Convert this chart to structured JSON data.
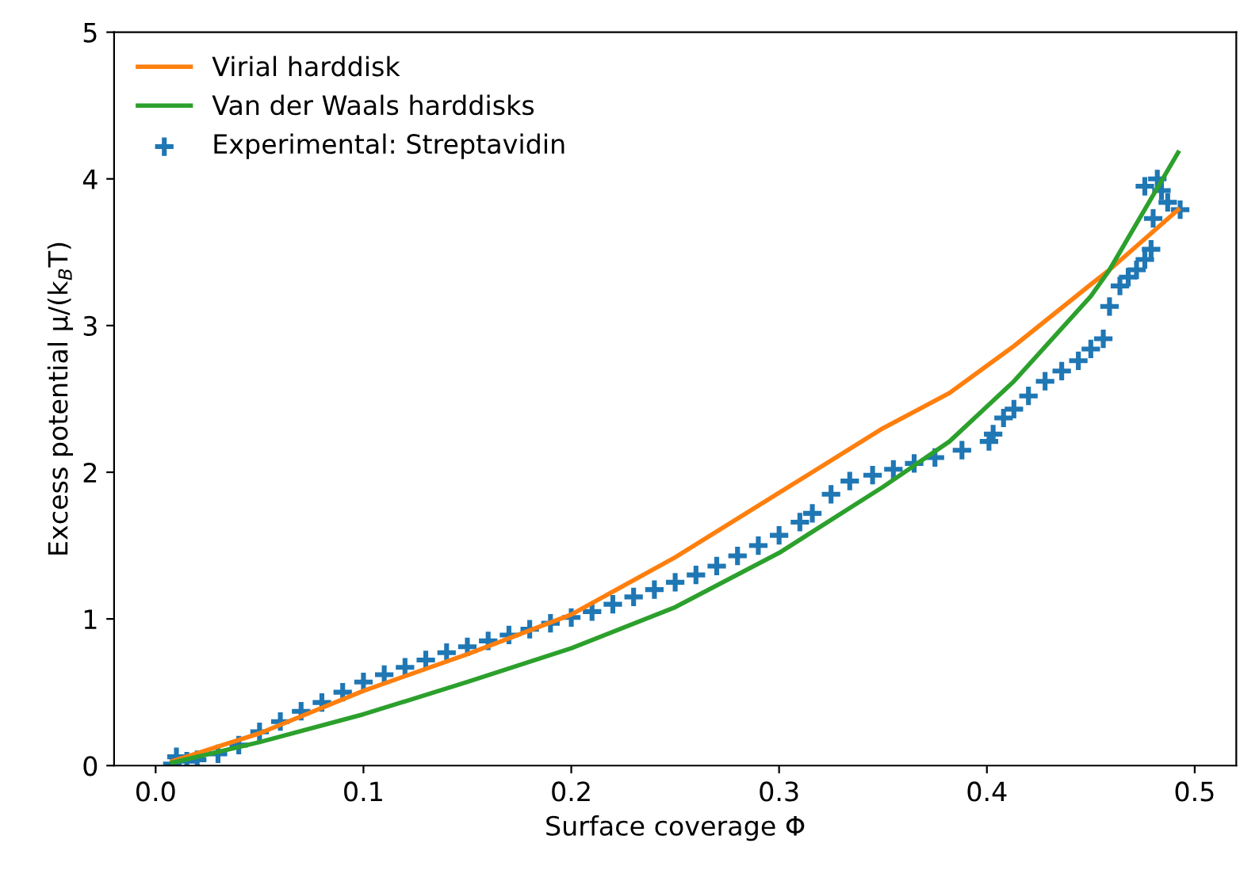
{
  "chart_data": {
    "type": "line",
    "xlabel": "Surface coverage Φ",
    "ylabel": "Excess potential μ/(k$_{B}$T)",
    "xlim": [
      -0.02,
      0.52
    ],
    "ylim": [
      0,
      5
    ],
    "xticks": [
      {
        "value": 0.0,
        "label": "0.0"
      },
      0.1,
      0.2,
      0.3,
      0.4,
      0.5
    ],
    "yticks": [
      0,
      1,
      2,
      3,
      4,
      5
    ],
    "grid": false,
    "legend": "top left",
    "series": [
      {
        "name": "Virial harddisk",
        "color": "#ff7f0e",
        "marker": "none",
        "x": [
          0.008,
          0.05,
          0.1,
          0.15,
          0.2,
          0.25,
          0.3,
          0.35,
          0.382,
          0.413,
          0.45,
          0.459,
          0.492
        ],
        "values": [
          0.03,
          0.22,
          0.51,
          0.76,
          1.03,
          1.42,
          1.86,
          2.3,
          2.54,
          2.86,
          3.28,
          3.38,
          3.79
        ]
      },
      {
        "name": "Van der Waals harddisks",
        "color": "#2ca02c",
        "marker": "none",
        "x": [
          0.008,
          0.05,
          0.1,
          0.15,
          0.2,
          0.25,
          0.3,
          0.35,
          0.382,
          0.413,
          0.45,
          0.459,
          0.492
        ],
        "values": [
          0.02,
          0.16,
          0.35,
          0.57,
          0.8,
          1.08,
          1.45,
          1.9,
          2.21,
          2.62,
          3.2,
          3.38,
          4.18
        ]
      },
      {
        "name": "Experimental: Streptavidin",
        "type": "scatter",
        "color": "#1f77b4",
        "marker": "cross",
        "x": [
          0.008,
          0.01,
          0.015,
          0.02,
          0.03,
          0.04,
          0.05,
          0.06,
          0.07,
          0.08,
          0.09,
          0.1,
          0.11,
          0.12,
          0.13,
          0.14,
          0.15,
          0.16,
          0.17,
          0.18,
          0.19,
          0.2,
          0.21,
          0.22,
          0.23,
          0.24,
          0.25,
          0.26,
          0.27,
          0.28,
          0.29,
          0.3,
          0.31,
          0.316,
          0.325,
          0.334,
          0.345,
          0.355,
          0.365,
          0.375,
          0.388,
          0.401,
          0.403,
          0.408,
          0.413,
          0.42,
          0.428,
          0.436,
          0.444,
          0.45,
          0.456,
          0.459,
          0.464,
          0.468,
          0.472,
          0.476,
          0.479,
          0.48,
          0.487,
          0.493,
          0.484,
          0.476,
          0.482
        ],
        "values": [
          0.01,
          0.06,
          0.03,
          0.04,
          0.08,
          0.14,
          0.23,
          0.3,
          0.37,
          0.43,
          0.5,
          0.57,
          0.62,
          0.67,
          0.72,
          0.77,
          0.81,
          0.85,
          0.89,
          0.93,
          0.97,
          1.01,
          1.05,
          1.1,
          1.15,
          1.2,
          1.25,
          1.3,
          1.36,
          1.43,
          1.5,
          1.57,
          1.66,
          1.72,
          1.85,
          1.94,
          1.98,
          2.02,
          2.06,
          2.1,
          2.15,
          2.21,
          2.26,
          2.37,
          2.43,
          2.52,
          2.62,
          2.69,
          2.76,
          2.84,
          2.91,
          3.13,
          3.27,
          3.33,
          3.38,
          3.45,
          3.52,
          3.73,
          3.84,
          3.79,
          3.92,
          3.95,
          4.0
        ]
      }
    ]
  }
}
